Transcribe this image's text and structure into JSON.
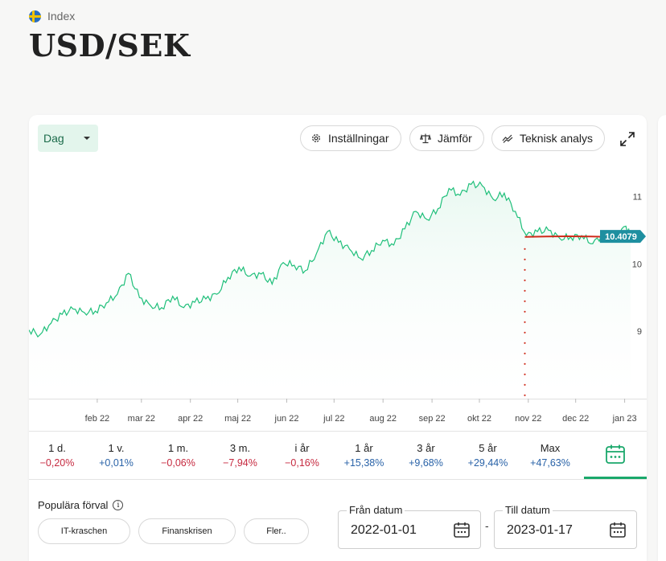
{
  "header": {
    "category": "Index",
    "title": "USD/SEK",
    "flag_icon": "sweden-flag-icon"
  },
  "toolbar": {
    "period": "Dag",
    "settings_label": "Inställningar",
    "compare_label": "Jämför",
    "technical_label": "Teknisk analys"
  },
  "colors": {
    "line": "#1fbf7a",
    "area": "#e9f8f1",
    "current_badge": "#1e8fa0",
    "average_line": "#d02a1a",
    "negative": "#c62a40",
    "positive": "#2a63a8",
    "accent": "#1aa86b"
  },
  "chart_data": {
    "type": "area",
    "x_ticks": [
      "feb 22",
      "mar 22",
      "apr 22",
      "maj 22",
      "jun 22",
      "jul 22",
      "aug 22",
      "sep 22",
      "okt 22",
      "nov 22",
      "dec 22",
      "jan 23"
    ],
    "y_ticks": [
      9,
      10,
      11
    ],
    "ylim": [
      8.0,
      11.4
    ],
    "current_value": 10.4079,
    "current_label": "10.4079",
    "x": [
      "2022-01-01",
      "2022-01-08",
      "2022-01-15",
      "2022-01-22",
      "2022-01-29",
      "2022-02-05",
      "2022-02-12",
      "2022-02-19",
      "2022-02-26",
      "2022-03-05",
      "2022-03-12",
      "2022-03-19",
      "2022-03-26",
      "2022-04-02",
      "2022-04-09",
      "2022-04-16",
      "2022-04-23",
      "2022-04-30",
      "2022-05-07",
      "2022-05-14",
      "2022-05-21",
      "2022-05-28",
      "2022-06-04",
      "2022-06-11",
      "2022-06-18",
      "2022-06-25",
      "2022-07-02",
      "2022-07-09",
      "2022-07-16",
      "2022-07-23",
      "2022-07-30",
      "2022-08-06",
      "2022-08-13",
      "2022-08-20",
      "2022-08-27",
      "2022-09-03",
      "2022-09-10",
      "2022-09-17",
      "2022-09-24",
      "2022-10-01",
      "2022-10-08",
      "2022-10-15",
      "2022-10-22",
      "2022-10-29",
      "2022-11-05",
      "2022-11-12",
      "2022-11-19",
      "2022-11-26",
      "2022-12-03",
      "2022-12-10",
      "2022-12-17",
      "2022-12-24",
      "2022-12-31",
      "2023-01-07",
      "2023-01-14",
      "2023-01-17"
    ],
    "values": [
      9.02,
      8.95,
      9.12,
      9.25,
      9.33,
      9.28,
      9.3,
      9.42,
      9.55,
      9.86,
      9.5,
      9.38,
      9.35,
      9.52,
      9.35,
      9.43,
      9.48,
      9.55,
      9.8,
      9.95,
      9.82,
      9.85,
      9.7,
      10.02,
      9.98,
      9.9,
      10.15,
      10.48,
      10.32,
      10.22,
      10.08,
      10.2,
      10.35,
      10.28,
      10.52,
      10.78,
      10.66,
      10.82,
      11.12,
      11.02,
      11.18,
      11.16,
      10.96,
      11.05,
      10.78,
      10.42,
      10.48,
      10.5,
      10.38,
      10.4,
      10.42,
      10.3,
      10.45,
      10.38,
      10.56,
      10.41
    ],
    "average_line": {
      "from": "2022-11-11",
      "to": "2023-01-17",
      "values": [
        10.4,
        10.39
      ]
    },
    "dotted_marker": {
      "x": "2022-11-11"
    }
  },
  "returns": [
    {
      "label": "1 d.",
      "value": "−0,20%",
      "sign": "neg"
    },
    {
      "label": "1 v.",
      "value": "+0,01%",
      "sign": "pos"
    },
    {
      "label": "1 m.",
      "value": "−0,06%",
      "sign": "neg"
    },
    {
      "label": "3 m.",
      "value": "−7,94%",
      "sign": "neg"
    },
    {
      "label": "i år",
      "value": "−0,16%",
      "sign": "neg"
    },
    {
      "label": "1 år",
      "value": "+15,38%",
      "sign": "pos"
    },
    {
      "label": "3 år",
      "value": "+9,68%",
      "sign": "pos"
    },
    {
      "label": "5 år",
      "value": "+29,44%",
      "sign": "pos"
    },
    {
      "label": "Max",
      "value": "+47,63%",
      "sign": "pos"
    }
  ],
  "presets": {
    "label": "Populära förval",
    "chips": [
      "IT-kraschen",
      "Finanskrisen",
      "Fler.."
    ]
  },
  "dates": {
    "from_label": "Från datum",
    "from_value": "2022-01-01",
    "to_label": "Till datum",
    "to_value": "2023-01-17"
  }
}
